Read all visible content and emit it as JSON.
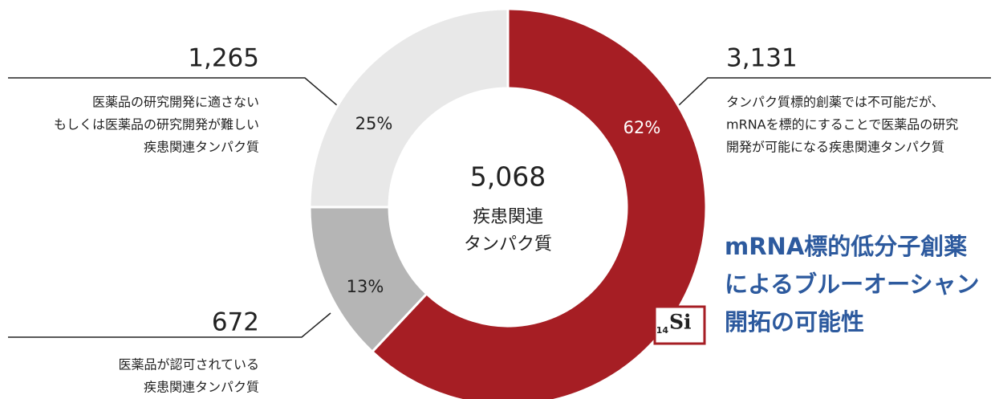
{
  "chart_data": {
    "type": "donut",
    "values": [
      62,
      13,
      25
    ],
    "value_labels": [
      "62%",
      "13%",
      "25%"
    ],
    "colors": [
      "#a61e24",
      "#b5b5b5",
      "#e8e8e8"
    ],
    "label_colors": [
      "#ffffff",
      "#222222",
      "#222222"
    ],
    "count_labels": [
      "3,131",
      "672",
      "1,265"
    ],
    "descriptions": [
      [
        "タンパク質標的創薬では不可能だが、",
        "mRNAを標的にすることで医薬品の研究",
        "開発が可能になる疾患関連タンパク質"
      ],
      [
        "医薬品が認可されている",
        "疾患関連タンパク質"
      ],
      [
        "医薬品の研究開発に適さない",
        "もしくは医薬品の研究開発が難しい",
        "疾患関連タンパク質"
      ]
    ],
    "total_label": "5,068",
    "center_lines": [
      "疾患関連",
      "タンパク質"
    ],
    "headline": [
      "mRNA標的低分子創薬",
      "によるブルーオーシャン",
      "開拓の可能性"
    ],
    "badge": {
      "number": "14",
      "symbol": "Si"
    }
  }
}
